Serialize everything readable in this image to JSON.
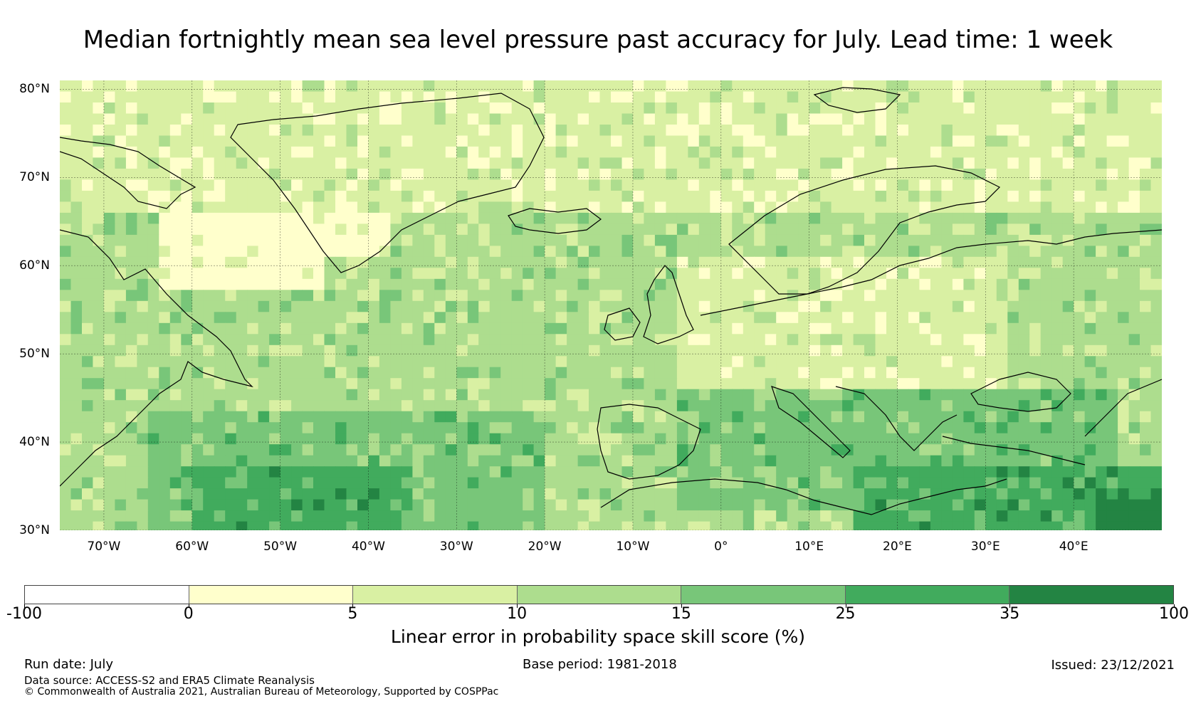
{
  "title": "Median fortnightly mean sea level pressure past accuracy for July. Lead time: 1 week",
  "map": {
    "lon_range": [
      -75,
      50
    ],
    "lat_range": [
      30,
      81
    ],
    "lat_labels": [
      {
        "value": 80,
        "text": "80°N"
      },
      {
        "value": 70,
        "text": "70°N"
      },
      {
        "value": 60,
        "text": "60°N"
      },
      {
        "value": 50,
        "text": "50°N"
      },
      {
        "value": 40,
        "text": "40°N"
      },
      {
        "value": 30,
        "text": "30°N"
      }
    ],
    "lon_labels": [
      {
        "value": -70,
        "text": "70°W"
      },
      {
        "value": -60,
        "text": "60°W"
      },
      {
        "value": -50,
        "text": "50°W"
      },
      {
        "value": -40,
        "text": "40°W"
      },
      {
        "value": -30,
        "text": "30°W"
      },
      {
        "value": -20,
        "text": "20°W"
      },
      {
        "value": -10,
        "text": "10°W"
      },
      {
        "value": 0,
        "text": "0°"
      },
      {
        "value": 10,
        "text": "10°E"
      },
      {
        "value": 20,
        "text": "20°E"
      },
      {
        "value": 30,
        "text": "30°E"
      },
      {
        "value": 40,
        "text": "40°E"
      }
    ],
    "gridlines": true,
    "regions": [
      {
        "name": "greenland-davis-pale",
        "class": 1,
        "lon": [
          -64,
          -38
        ],
        "lat": [
          58,
          74
        ]
      },
      {
        "name": "arctic-light",
        "class": 2,
        "lon": [
          -75,
          50
        ],
        "lat": [
          66,
          81
        ]
      },
      {
        "name": "north-europe-light",
        "class": 2,
        "lon": [
          -12,
          32
        ],
        "lat": [
          47,
          62
        ]
      },
      {
        "name": "atlantic-mid",
        "class": 3,
        "lon": [
          -45,
          -5
        ],
        "lat": [
          42,
          62
        ]
      },
      {
        "name": "atlantic-south",
        "class": 4,
        "lon": [
          -65,
          -20
        ],
        "lat": [
          30,
          44
        ]
      },
      {
        "name": "subtropical-dark",
        "class": 5,
        "lon": [
          -60,
          -35
        ],
        "lat": [
          30,
          38
        ]
      },
      {
        "name": "mediterranean",
        "class": 4,
        "lon": [
          -5,
          45
        ],
        "lat": [
          33,
          46
        ]
      },
      {
        "name": "eastern-med-dark",
        "class": 5,
        "lon": [
          15,
          50
        ],
        "lat": [
          30,
          38
        ]
      },
      {
        "name": "middle-east-darkest",
        "class": 6,
        "lon": [
          42,
          50
        ],
        "lat": [
          30,
          35
        ]
      }
    ]
  },
  "colorbar": {
    "label": "Linear error in probability space skill score (%)",
    "ticks": [
      "-100",
      "0",
      "5",
      "10",
      "15",
      "25",
      "35",
      "100"
    ],
    "colors": [
      "#ffffff",
      "#ffffcc",
      "#d9f0a3",
      "#addd8e",
      "#78c679",
      "#41ab5d",
      "#238443"
    ]
  },
  "footer": {
    "run_date": "Run date: July",
    "base_period": "Base period: 1981-2018",
    "issued": "Issued: 23/12/2021",
    "data_source": "Data source: ACCESS-S2 and ERA5 Climate Reanalysis",
    "copyright": "© Commonwealth of Australia 2021, Australian Bureau of Meteorology, Supported by COSPPac"
  }
}
